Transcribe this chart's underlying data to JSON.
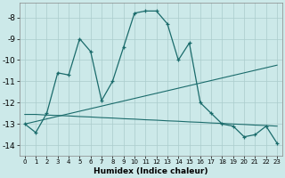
{
  "xlabel": "Humidex (Indice chaleur)",
  "bg_color": "#cce9e9",
  "line_color": "#1a6b6b",
  "grid_color": "#aacccc",
  "x_values": [
    0,
    1,
    2,
    3,
    4,
    5,
    6,
    7,
    8,
    9,
    10,
    11,
    12,
    13,
    14,
    15,
    16,
    17,
    18,
    19,
    20,
    21,
    22,
    23
  ],
  "line_main": [
    -13.0,
    -13.4,
    -12.5,
    -10.6,
    -10.7,
    -9.0,
    -9.6,
    -11.9,
    -11.0,
    -9.4,
    -7.8,
    -7.7,
    -7.7,
    -8.3,
    -10.0,
    -9.2,
    -12.0,
    -12.5,
    -13.0,
    -13.1,
    -13.6,
    -13.5,
    -13.1,
    -13.9
  ],
  "lin1": [
    -13.0,
    -12.88,
    -12.76,
    -12.64,
    -12.52,
    -12.4,
    -12.28,
    -12.16,
    -12.04,
    -11.92,
    -11.8,
    -11.68,
    -11.56,
    -11.44,
    -11.32,
    -11.2,
    -11.08,
    -10.96,
    -10.84,
    -10.72,
    -10.6,
    -10.48,
    -10.36,
    -10.24
  ],
  "lin2": [
    -12.55,
    -12.55,
    -12.58,
    -12.6,
    -12.62,
    -12.65,
    -12.67,
    -12.7,
    -12.72,
    -12.75,
    -12.77,
    -12.8,
    -12.82,
    -12.85,
    -12.87,
    -12.9,
    -12.92,
    -12.95,
    -12.97,
    -13.0,
    -13.02,
    -13.05,
    -13.07,
    -13.1
  ],
  "ylim": [
    -14.5,
    -7.3
  ],
  "yticks": [
    -14,
    -13,
    -12,
    -11,
    -10,
    -9,
    -8
  ],
  "xtick_labels": [
    "0",
    "1",
    "2",
    "3",
    "4",
    "5",
    "6",
    "7",
    "8",
    "9",
    "10",
    "11",
    "12",
    "13",
    "14",
    "15",
    "16",
    "17",
    "18",
    "19",
    "20",
    "21",
    "22",
    "23"
  ]
}
